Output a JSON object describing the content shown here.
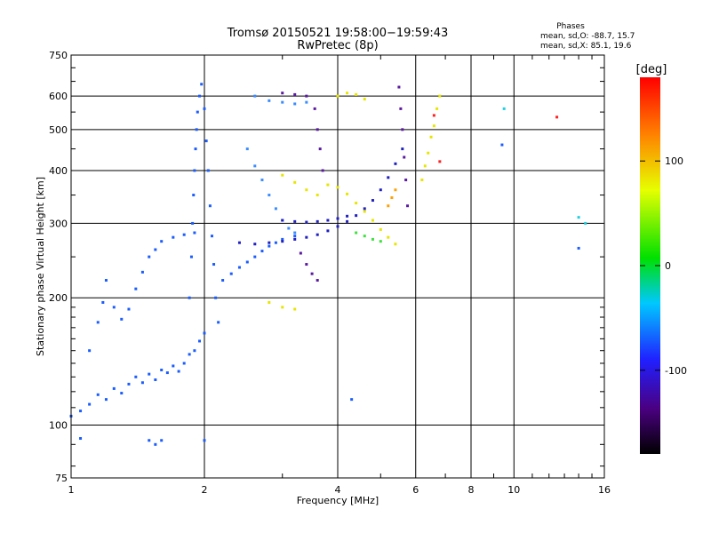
{
  "chart_data": {
    "type": "scatter",
    "title": "Tromsø 20150521 19:58:00−19:59:43",
    "subtitle": "RwPretec (8p)",
    "xlabel": "Frequency [MHz]",
    "ylabel": "Stationary phase Virtual Height [km]",
    "x_scale": "log",
    "y_scale": "log",
    "xlim": [
      1,
      16
    ],
    "ylim": [
      75,
      750
    ],
    "x_ticks": [
      1,
      2,
      4,
      6,
      8,
      10,
      16
    ],
    "y_ticks": [
      75,
      100,
      200,
      300,
      400,
      500,
      600,
      750
    ],
    "grid": true,
    "phase_info": {
      "heading": "Phases",
      "line_o": "mean, sd,O: -88.7, 15.7",
      "line_x": "mean, sd,X: 85.1, 19.6"
    },
    "colorbar": {
      "label": "[deg]",
      "range": [
        -180,
        180
      ],
      "ticks": [
        100,
        0,
        -100
      ]
    },
    "colors": {
      "blue": "#1a5cff",
      "light_blue": "#3b8cff",
      "dark_blue": "#2020c0",
      "purple": "#5a1aa0",
      "yellow": "#e6e600",
      "orange": "#ffa000",
      "red": "#ff2020",
      "green": "#40e040",
      "cyan": "#20d0e0"
    },
    "series": [
      {
        "color": "blue",
        "points": [
          [
            1.0,
            105
          ],
          [
            1.05,
            108
          ],
          [
            1.1,
            112
          ],
          [
            1.15,
            118
          ],
          [
            1.2,
            115
          ],
          [
            1.25,
            122
          ],
          [
            1.3,
            119
          ],
          [
            1.35,
            125
          ],
          [
            1.4,
            130
          ],
          [
            1.45,
            126
          ],
          [
            1.5,
            132
          ],
          [
            1.55,
            128
          ],
          [
            1.6,
            135
          ],
          [
            1.65,
            133
          ],
          [
            1.7,
            138
          ],
          [
            1.75,
            134
          ],
          [
            1.8,
            140
          ],
          [
            1.85,
            147
          ],
          [
            1.9,
            150
          ],
          [
            1.95,
            158
          ],
          [
            2.0,
            165
          ]
        ]
      },
      {
        "color": "blue",
        "points": [
          [
            1.1,
            150
          ],
          [
            1.15,
            175
          ],
          [
            1.18,
            195
          ],
          [
            1.2,
            220
          ],
          [
            1.25,
            190
          ],
          [
            1.3,
            178
          ],
          [
            1.35,
            188
          ],
          [
            1.4,
            210
          ],
          [
            1.45,
            230
          ],
          [
            1.5,
            250
          ],
          [
            1.55,
            260
          ],
          [
            1.6,
            272
          ],
          [
            1.7,
            278
          ],
          [
            1.8,
            282
          ],
          [
            1.9,
            285
          ]
        ]
      },
      {
        "color": "blue",
        "points": [
          [
            1.85,
            200
          ],
          [
            1.87,
            250
          ],
          [
            1.88,
            300
          ],
          [
            1.89,
            350
          ],
          [
            1.9,
            400
          ],
          [
            1.91,
            450
          ],
          [
            1.92,
            500
          ],
          [
            1.93,
            550
          ],
          [
            1.95,
            600
          ],
          [
            1.97,
            640
          ],
          [
            2.0,
            560
          ],
          [
            2.02,
            470
          ],
          [
            2.04,
            400
          ],
          [
            2.06,
            330
          ],
          [
            2.08,
            280
          ],
          [
            2.1,
            240
          ],
          [
            2.12,
            200
          ],
          [
            2.15,
            175
          ]
        ]
      },
      {
        "color": "blue",
        "points": [
          [
            2.2,
            220
          ],
          [
            2.3,
            228
          ],
          [
            2.4,
            236
          ],
          [
            2.5,
            243
          ],
          [
            2.6,
            250
          ],
          [
            2.7,
            258
          ],
          [
            2.8,
            265
          ],
          [
            2.9,
            270
          ],
          [
            3.0,
            275
          ],
          [
            3.2,
            280
          ]
        ]
      },
      {
        "color": "light_blue",
        "points": [
          [
            2.5,
            450
          ],
          [
            2.6,
            410
          ],
          [
            2.7,
            380
          ],
          [
            2.8,
            350
          ],
          [
            2.9,
            325
          ],
          [
            3.0,
            305
          ],
          [
            3.1,
            292
          ],
          [
            3.2,
            285
          ]
        ]
      },
      {
        "color": "light_blue",
        "points": [
          [
            2.6,
            600
          ],
          [
            2.8,
            585
          ],
          [
            3.0,
            580
          ],
          [
            3.2,
            575
          ],
          [
            3.4,
            580
          ]
        ]
      },
      {
        "color": "dark_blue",
        "points": [
          [
            2.4,
            270
          ],
          [
            2.6,
            268
          ],
          [
            2.8,
            270
          ],
          [
            3.0,
            272
          ],
          [
            3.2,
            275
          ],
          [
            3.4,
            278
          ],
          [
            3.6,
            282
          ],
          [
            3.8,
            288
          ],
          [
            4.0,
            295
          ],
          [
            4.2,
            303
          ],
          [
            4.4,
            313
          ],
          [
            4.6,
            325
          ],
          [
            4.8,
            340
          ],
          [
            5.0,
            360
          ],
          [
            5.2,
            385
          ],
          [
            5.4,
            415
          ],
          [
            5.6,
            450
          ]
        ]
      },
      {
        "color": "dark_blue",
        "points": [
          [
            3.0,
            305
          ],
          [
            3.2,
            303
          ],
          [
            3.4,
            302
          ],
          [
            3.6,
            303
          ],
          [
            3.8,
            305
          ],
          [
            4.0,
            308
          ],
          [
            4.2,
            312
          ]
        ]
      },
      {
        "color": "purple",
        "points": [
          [
            3.0,
            610
          ],
          [
            3.2,
            605
          ],
          [
            3.4,
            600
          ],
          [
            3.55,
            560
          ],
          [
            3.6,
            500
          ],
          [
            3.65,
            450
          ],
          [
            3.7,
            400
          ]
        ]
      },
      {
        "color": "purple",
        "points": [
          [
            3.3,
            255
          ],
          [
            3.4,
            240
          ],
          [
            3.5,
            228
          ],
          [
            3.6,
            220
          ]
        ]
      },
      {
        "color": "purple",
        "points": [
          [
            5.5,
            630
          ],
          [
            5.55,
            560
          ],
          [
            5.6,
            500
          ],
          [
            5.65,
            430
          ],
          [
            5.7,
            380
          ],
          [
            5.75,
            330
          ]
        ]
      },
      {
        "color": "yellow",
        "points": [
          [
            3.0,
            390
          ],
          [
            3.2,
            375
          ],
          [
            3.4,
            360
          ],
          [
            3.6,
            350
          ],
          [
            3.8,
            370
          ],
          [
            4.0,
            365
          ],
          [
            4.2,
            352
          ],
          [
            4.4,
            335
          ],
          [
            4.6,
            320
          ],
          [
            4.8,
            305
          ],
          [
            5.0,
            290
          ],
          [
            5.2,
            278
          ],
          [
            5.4,
            268
          ]
        ]
      },
      {
        "color": "yellow",
        "points": [
          [
            4.0,
            600
          ],
          [
            4.2,
            610
          ],
          [
            4.4,
            605
          ],
          [
            4.6,
            590
          ]
        ]
      },
      {
        "color": "yellow",
        "points": [
          [
            6.2,
            380
          ],
          [
            6.3,
            410
          ],
          [
            6.4,
            440
          ],
          [
            6.5,
            480
          ],
          [
            6.6,
            510
          ],
          [
            6.7,
            560
          ],
          [
            6.8,
            600
          ]
        ]
      },
      {
        "color": "yellow",
        "points": [
          [
            2.8,
            195
          ],
          [
            3.0,
            190
          ],
          [
            3.2,
            188
          ]
        ]
      },
      {
        "color": "orange",
        "points": [
          [
            5.2,
            330
          ],
          [
            5.3,
            345
          ],
          [
            5.4,
            360
          ]
        ]
      },
      {
        "color": "red",
        "points": [
          [
            6.6,
            540
          ],
          [
            6.8,
            420
          ],
          [
            12.5,
            535
          ]
        ]
      },
      {
        "color": "green",
        "points": [
          [
            4.4,
            285
          ],
          [
            4.6,
            280
          ],
          [
            4.8,
            275
          ],
          [
            5.0,
            272
          ]
        ]
      },
      {
        "color": "cyan",
        "points": [
          [
            14.0,
            310
          ],
          [
            14.5,
            300
          ],
          [
            9.5,
            560
          ]
        ]
      },
      {
        "color": "blue",
        "points": [
          [
            1.05,
            93
          ],
          [
            1.5,
            92
          ],
          [
            1.55,
            90
          ],
          [
            1.6,
            92
          ],
          [
            2.0,
            92
          ],
          [
            4.3,
            115
          ],
          [
            14.0,
            262
          ],
          [
            9.4,
            460
          ]
        ]
      }
    ]
  }
}
